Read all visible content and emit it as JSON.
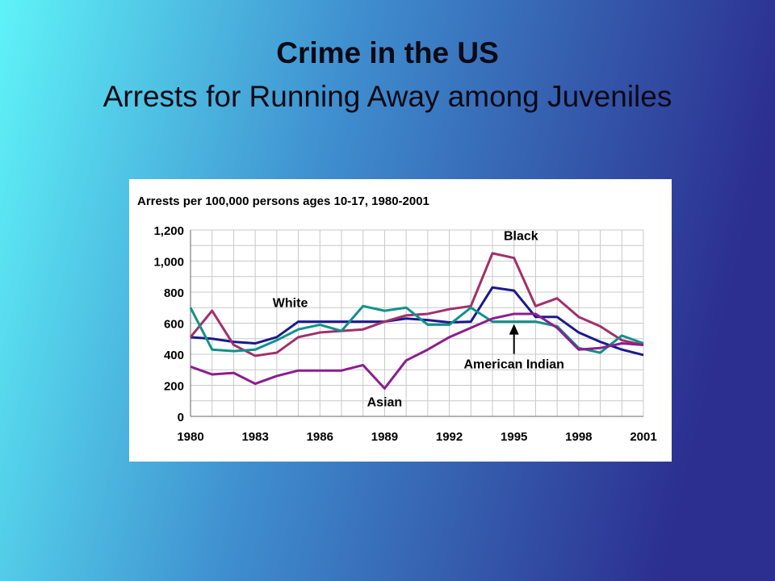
{
  "slide": {
    "title_line_1": "Crime in the US",
    "title_line_2": "Arrests for Running Away among Juveniles",
    "colors": {
      "bg_left": "#5ff3f8",
      "bg_right": "#2c2f90"
    }
  },
  "chart_data": {
    "type": "line",
    "title": "Arrests per 100,000 persons ages 10-17, 1980-2001",
    "xlabel": "",
    "ylabel": "",
    "x": [
      1980,
      1981,
      1982,
      1983,
      1984,
      1985,
      1986,
      1987,
      1988,
      1989,
      1990,
      1991,
      1992,
      1993,
      1994,
      1995,
      1996,
      1997,
      1998,
      1999,
      2000,
      2001
    ],
    "xticks": [
      "1980",
      "1983",
      "1986",
      "1989",
      "1992",
      "1995",
      "1998",
      "2001"
    ],
    "xtick_values": [
      1980,
      1983,
      1986,
      1989,
      1992,
      1995,
      1998,
      2001
    ],
    "yticks": [
      "0",
      "200",
      "400",
      "600",
      "800",
      "1,000",
      "1,200"
    ],
    "ytick_values": [
      0,
      200,
      400,
      600,
      800,
      1000,
      1200
    ],
    "xlim": [
      1980,
      2001
    ],
    "ylim": [
      0,
      1200
    ],
    "grid": true,
    "series": [
      {
        "name": "White",
        "color": "#1a1a8c",
        "values": [
          510,
          500,
          480,
          470,
          510,
          610,
          610,
          610,
          610,
          610,
          630,
          620,
          605,
          610,
          830,
          810,
          640,
          640,
          540,
          480,
          430,
          395
        ]
      },
      {
        "name": "Black",
        "color": "#a0306a",
        "values": [
          510,
          680,
          460,
          390,
          410,
          510,
          540,
          550,
          560,
          610,
          650,
          660,
          690,
          710,
          1050,
          1020,
          710,
          760,
          640,
          580,
          490,
          460
        ]
      },
      {
        "name": "American Indian",
        "color": "#11908a",
        "values": [
          700,
          430,
          420,
          430,
          490,
          560,
          590,
          550,
          710,
          680,
          700,
          590,
          590,
          700,
          610,
          610,
          610,
          580,
          440,
          410,
          520,
          470
        ]
      },
      {
        "name": "Asian",
        "color": "#8a1e90",
        "values": [
          320,
          270,
          280,
          210,
          260,
          295,
          295,
          295,
          330,
          180,
          360,
          430,
          510,
          570,
          630,
          660,
          660,
          570,
          430,
          440,
          470,
          460
        ]
      }
    ],
    "annotations": [
      {
        "text": "White",
        "series": "White"
      },
      {
        "text": "Black",
        "series": "Black"
      },
      {
        "text": "American Indian",
        "series": "American Indian",
        "arrow": true
      },
      {
        "text": "Asian",
        "series": "Asian"
      }
    ]
  }
}
